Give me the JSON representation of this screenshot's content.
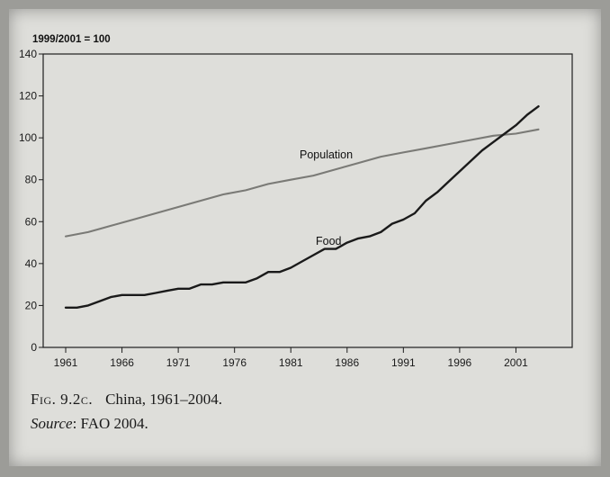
{
  "chart_data": {
    "type": "line",
    "unit_label": "1999/2001 = 100",
    "ylim": [
      0,
      140
    ],
    "y_ticks": [
      0,
      20,
      40,
      60,
      80,
      100,
      120,
      140
    ],
    "xlim": [
      1959,
      2006
    ],
    "x_ticks": [
      1961,
      1966,
      1971,
      1976,
      1981,
      1986,
      1991,
      1996,
      2001
    ],
    "grid": false,
    "legend": "none (series labelled directly on lines)",
    "series": [
      {
        "name": "Population",
        "color": "#7a7a76",
        "x": [
          1961,
          1963,
          1965,
          1967,
          1969,
          1971,
          1973,
          1975,
          1977,
          1979,
          1981,
          1983,
          1985,
          1987,
          1989,
          1991,
          1993,
          1995,
          1997,
          1999,
          2001,
          2003
        ],
        "values": [
          53,
          55,
          58,
          61,
          64,
          67,
          70,
          73,
          75,
          78,
          80,
          82,
          85,
          88,
          91,
          93,
          95,
          97,
          99,
          101,
          102,
          104
        ]
      },
      {
        "name": "Food",
        "color": "#1a1a1a",
        "x": [
          1961,
          1962,
          1963,
          1964,
          1965,
          1966,
          1967,
          1968,
          1969,
          1970,
          1971,
          1972,
          1973,
          1974,
          1975,
          1976,
          1977,
          1978,
          1979,
          1980,
          1981,
          1982,
          1983,
          1984,
          1985,
          1986,
          1987,
          1988,
          1989,
          1990,
          1991,
          1992,
          1993,
          1994,
          1995,
          1996,
          1997,
          1998,
          1999,
          2000,
          2001,
          2002,
          2003
        ],
        "values": [
          19,
          19,
          20,
          22,
          24,
          25,
          25,
          25,
          26,
          27,
          28,
          28,
          30,
          30,
          31,
          31,
          31,
          33,
          36,
          36,
          38,
          41,
          44,
          47,
          47,
          50,
          52,
          53,
          55,
          59,
          61,
          64,
          70,
          74,
          79,
          84,
          89,
          94,
          98,
          102,
          106,
          111,
          115
        ]
      }
    ]
  },
  "caption": {
    "figure_label": "Fig. 9.2c.",
    "figure_title": "China, 1961–2004.",
    "source_label": "Source",
    "source_text": ": FAO 2004."
  }
}
